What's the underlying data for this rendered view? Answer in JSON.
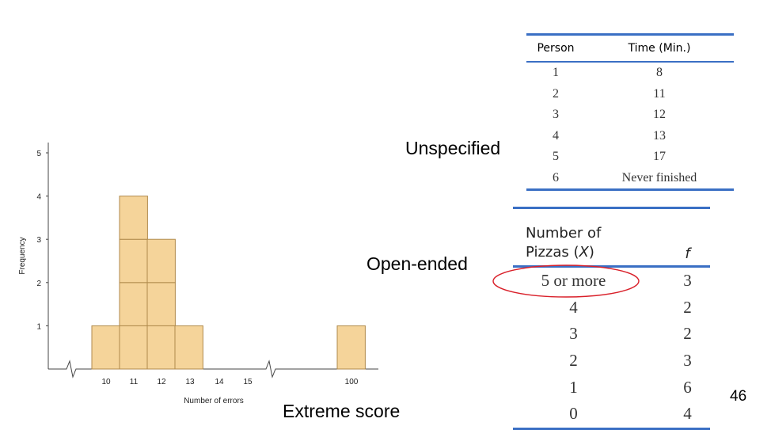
{
  "chart_data": {
    "type": "bar",
    "title": "",
    "xlabel": "Number of errors",
    "ylabel": "Frequency",
    "categories": [
      "10",
      "11",
      "12",
      "13",
      "14",
      "15",
      "100"
    ],
    "values": [
      1,
      4,
      3,
      1,
      0,
      0,
      1
    ],
    "y_ticks": [
      "1",
      "2",
      "3",
      "4",
      "5"
    ],
    "ylim": [
      0,
      5
    ],
    "grid": false,
    "style": "stacked unit blocks with axis breaks",
    "bar_color": "#f5d49a",
    "bar_edge_color": "#b08a4c"
  },
  "labels": {
    "unspecified": "Unspecified",
    "open_ended": "Open-ended",
    "extreme": "Extreme score",
    "page_number": "46"
  },
  "table_times": {
    "headers": [
      "Person",
      "Time (Min.)"
    ],
    "rows": [
      [
        "1",
        "8"
      ],
      [
        "2",
        "11"
      ],
      [
        "3",
        "12"
      ],
      [
        "4",
        "13"
      ],
      [
        "5",
        "17"
      ],
      [
        "6",
        "Never finished"
      ]
    ]
  },
  "table_pizzas": {
    "header_x_line1": "Number of",
    "header_x_line2": "Pizzas (",
    "header_x_var": "X",
    "header_x_close": ")",
    "header_f": "f",
    "rows": [
      [
        "5 or more",
        "3"
      ],
      [
        "4",
        "2"
      ],
      [
        "3",
        "2"
      ],
      [
        "2",
        "3"
      ],
      [
        "1",
        "6"
      ],
      [
        "0",
        "4"
      ]
    ]
  },
  "colors": {
    "rule_blue": "#3a6fc4",
    "highlight_red": "#d9202a"
  }
}
